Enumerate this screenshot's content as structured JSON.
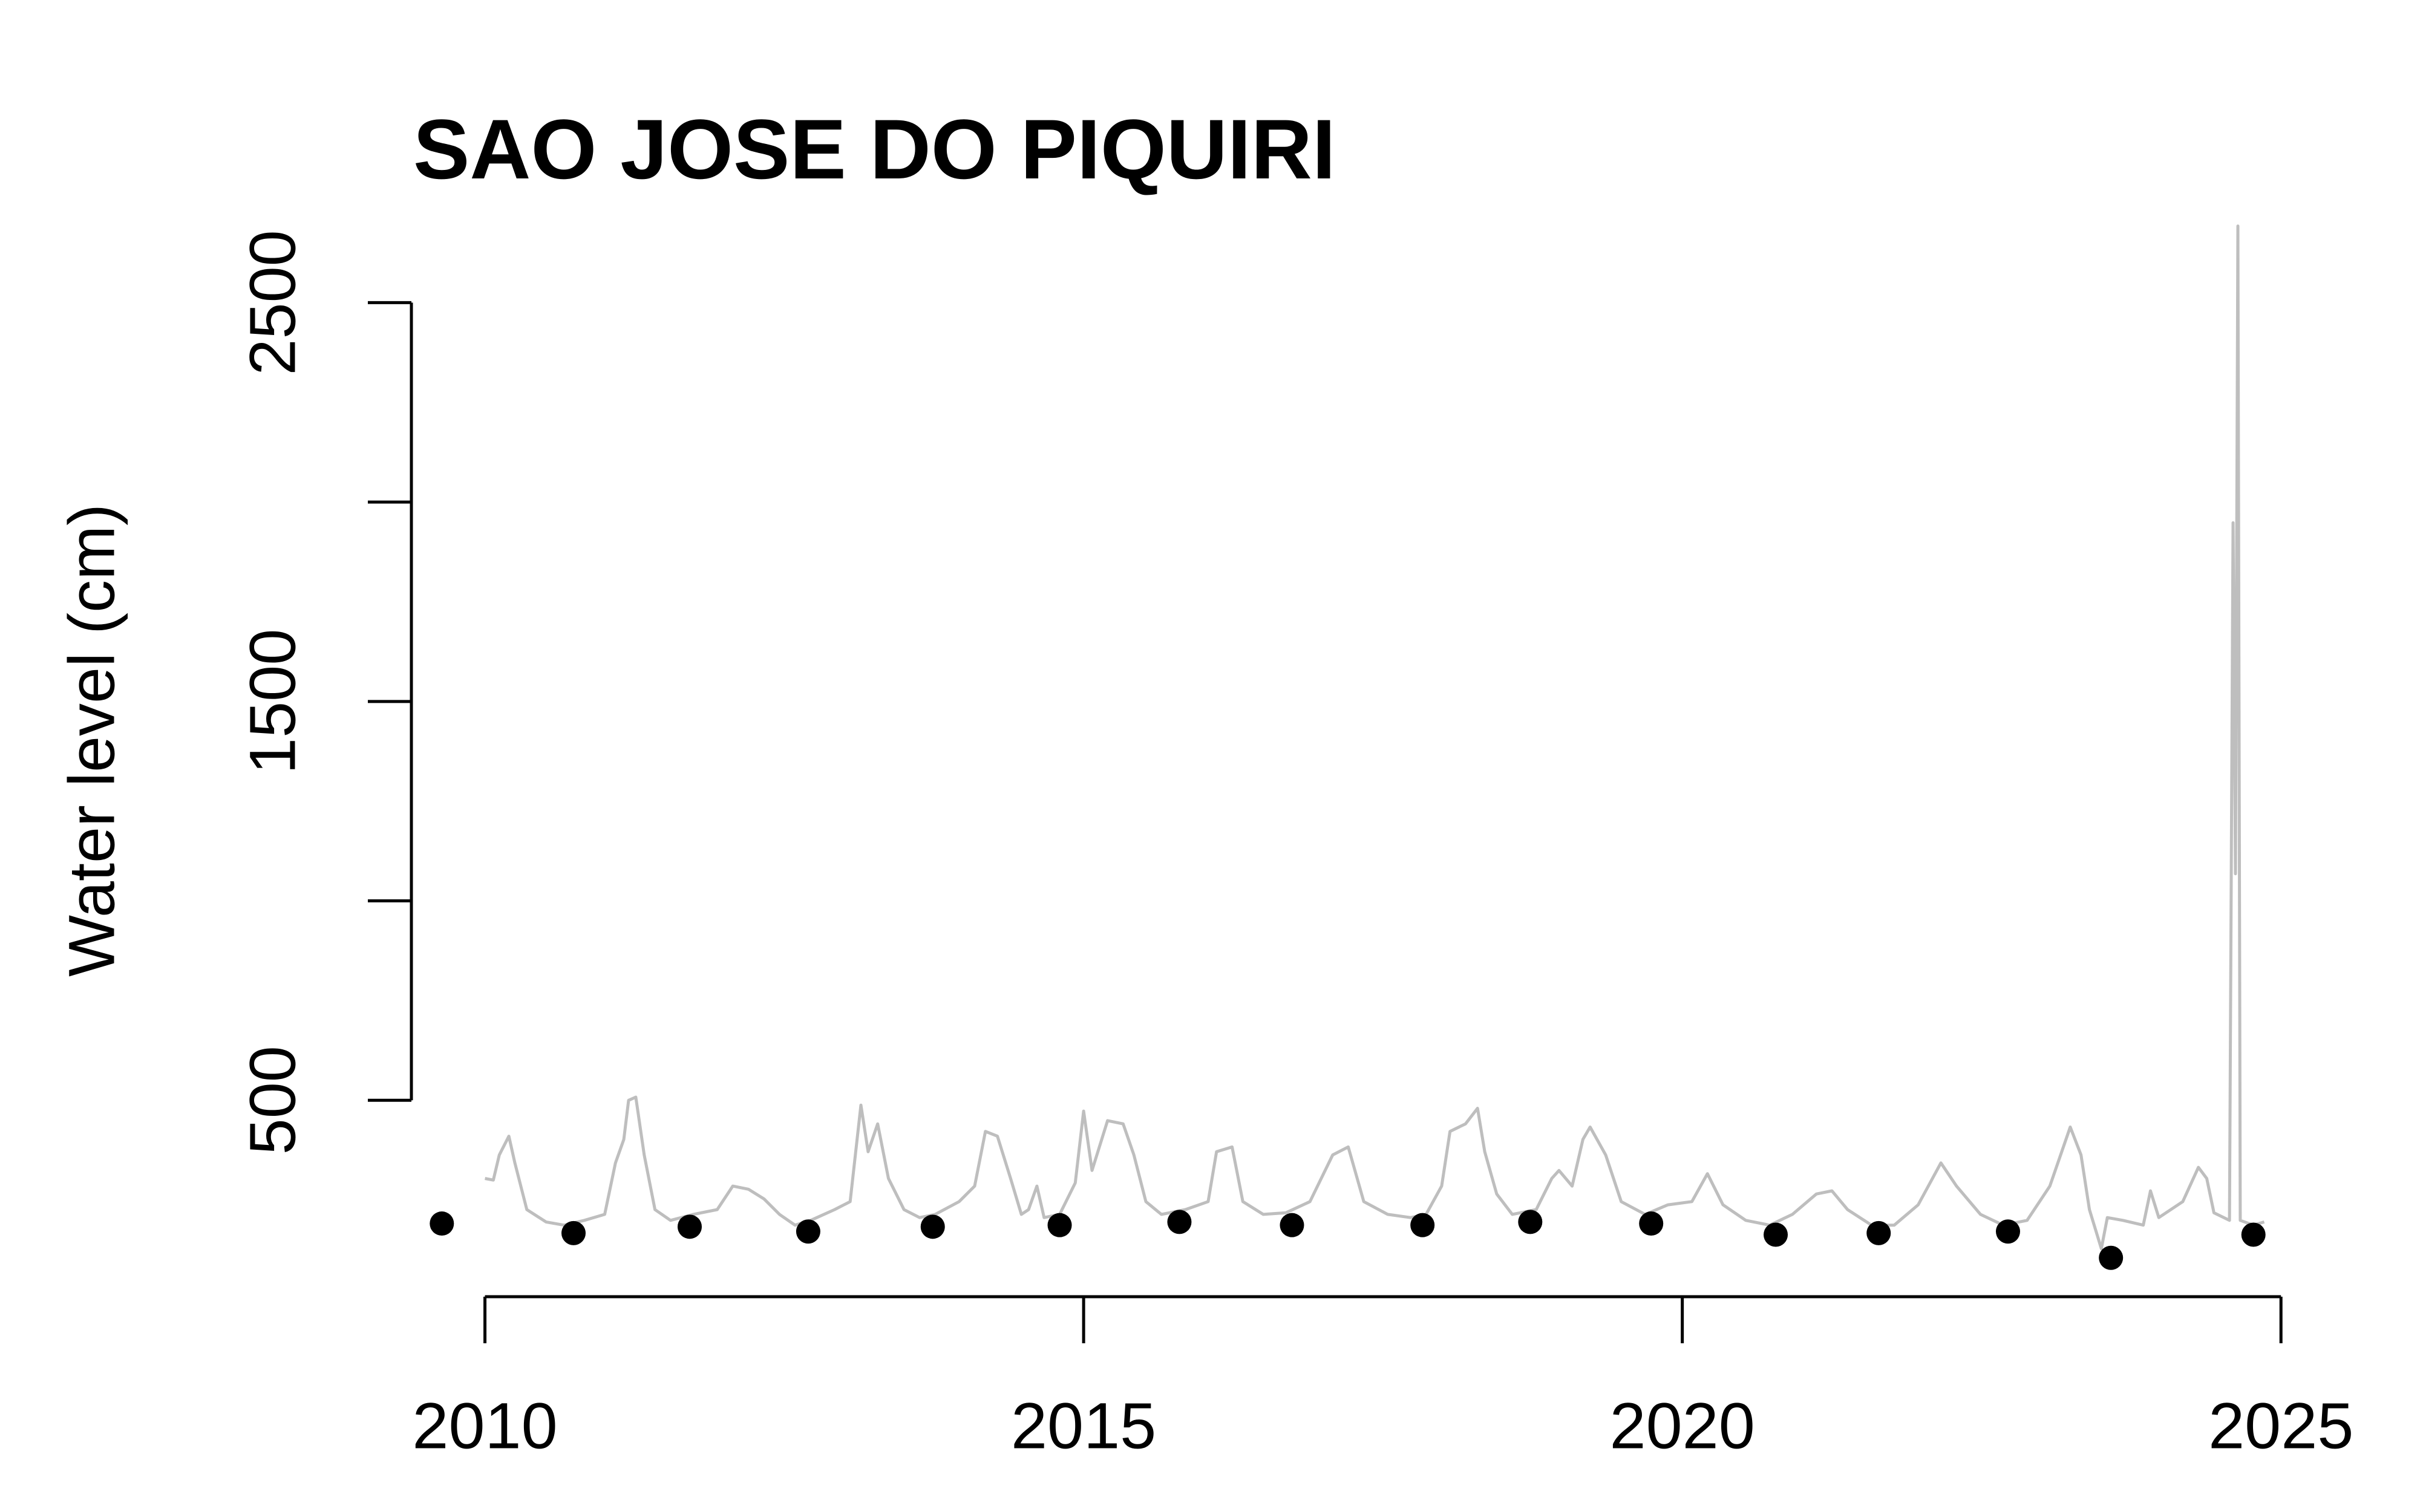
{
  "chart_data": {
    "type": "line",
    "title": "SAO JOSE DO PIQUIRI",
    "y_label": "Water level (cm)",
    "xlim": [
      2009.5,
      2025.1
    ],
    "xticks": [
      2010,
      2015,
      2020,
      2025
    ],
    "ylim": [
      0,
      2700
    ],
    "yticks": [
      500,
      {
        "value": 1000,
        "label": null
      },
      1500,
      {
        "value": 2000,
        "label": null
      },
      2500
    ],
    "grid": false,
    "series": [
      {
        "style": "line",
        "color": "#bebebe",
        "x": [
          2010.0,
          2010.07,
          2010.12,
          2010.2,
          2010.25,
          2010.35,
          2010.51,
          2010.66,
          2010.83,
          2011.0,
          2011.09,
          2011.16,
          2011.2,
          2011.26,
          2011.33,
          2011.42,
          2011.55,
          2011.74,
          2011.94,
          2012.07,
          2012.2,
          2012.33,
          2012.46,
          2012.59,
          2012.72,
          2012.92,
          2013.05,
          2013.14,
          2013.2,
          2013.28,
          2013.37,
          2013.5,
          2013.63,
          2013.76,
          2013.96,
          2014.09,
          2014.18,
          2014.28,
          2014.39,
          2014.48,
          2014.54,
          2014.61,
          2014.67,
          2014.8,
          2014.93,
          2015.0,
          2015.07,
          2015.2,
          2015.33,
          2015.42,
          2015.52,
          2015.65,
          2015.85,
          2016.04,
          2016.11,
          2016.24,
          2016.33,
          2016.5,
          2016.69,
          2016.89,
          2017.08,
          2017.21,
          2017.34,
          2017.54,
          2017.73,
          2017.86,
          2017.99,
          2018.06,
          2018.19,
          2018.29,
          2018.35,
          2018.45,
          2018.58,
          2018.78,
          2018.91,
          2018.97,
          2019.08,
          2019.17,
          2019.23,
          2019.36,
          2019.49,
          2019.69,
          2019.88,
          2020.08,
          2020.21,
          2020.34,
          2020.53,
          2020.73,
          2020.92,
          2021.12,
          2021.25,
          2021.38,
          2021.58,
          2021.77,
          2021.97,
          2022.16,
          2022.29,
          2022.49,
          2022.68,
          2022.88,
          2023.07,
          2023.24,
          2023.33,
          2023.4,
          2023.5,
          2023.55,
          2023.68,
          2023.85,
          2023.91,
          2023.98,
          2024.18,
          2024.31,
          2024.38,
          2024.44,
          2024.57,
          2024.6,
          2024.62,
          2024.64,
          2024.66,
          2024.77,
          2024.86
        ],
        "values": [
          304,
          300,
          363,
          410,
          343,
          226,
          195,
          187,
          199,
          214,
          343,
          402,
          500,
          508,
          363,
          226,
          199,
          214,
          226,
          285,
          277,
          253,
          214,
          187,
          199,
          226,
          246,
          488,
          371,
          441,
          304,
          226,
          206,
          214,
          246,
          285,
          422,
          410,
          304,
          214,
          226,
          285,
          206,
          214,
          293,
          473,
          324,
          449,
          441,
          363,
          246,
          214,
          226,
          246,
          371,
          383,
          246,
          214,
          218,
          246,
          363,
          383,
          246,
          214,
          206,
          214,
          285,
          422,
          441,
          480,
          371,
          265,
          214,
          226,
          304,
          324,
          285,
          402,
          433,
          363,
          246,
          214,
          238,
          246,
          316,
          238,
          199,
          187,
          214,
          265,
          273,
          226,
          187,
          187,
          238,
          343,
          285,
          214,
          187,
          199,
          285,
          433,
          363,
          226,
          128,
          206,
          199,
          187,
          273,
          206,
          246,
          332,
          304,
          218,
          199,
          1948,
          1068,
          2692,
          199,
          187,
          195
        ]
      },
      {
        "style": "points",
        "color": "#000000",
        "x": [
          2009.64,
          2010.74,
          2011.71,
          2012.7,
          2013.74,
          2014.8,
          2015.8,
          2016.74,
          2017.83,
          2018.73,
          2019.74,
          2020.78,
          2021.64,
          2022.72,
          2023.58,
          2024.77
        ],
        "values": [
          191,
          167,
          183,
          171,
          183,
          187,
          195,
          187,
          187,
          195,
          191,
          163,
          167,
          171,
          105,
          163
        ]
      }
    ]
  }
}
